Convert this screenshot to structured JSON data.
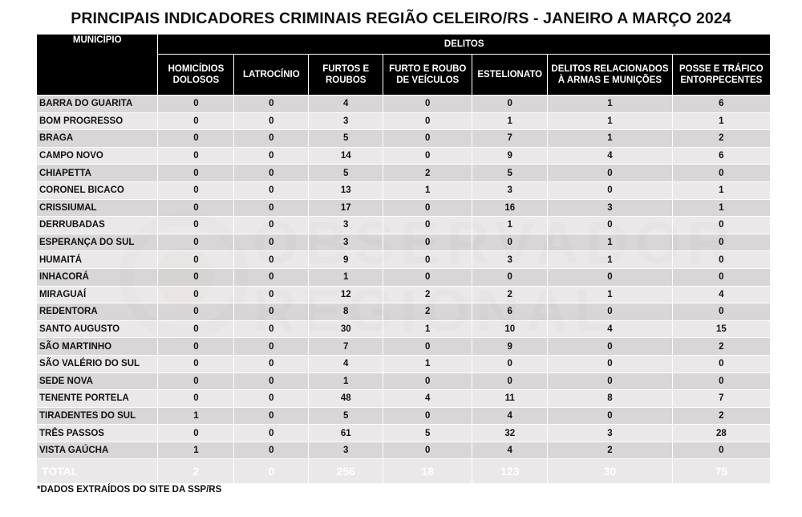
{
  "title": "PRINCIPAIS INDICADORES CRIMINAIS REGIÃO CELEIRO/RS - JANEIRO A MARÇO 2024",
  "watermark": {
    "line1": "OBSERVADOR",
    "line2": "REGIONAL"
  },
  "table": {
    "municipio_header": "MUNICÍPIO",
    "group_header": "DELITOS",
    "columns": [
      [
        "HOMICÍDIOS",
        "DOLOSOS"
      ],
      [
        "LATROCÍNIO"
      ],
      [
        "FURTOS E",
        "ROUBOS"
      ],
      [
        "FURTO E ROUBO",
        "DE VEÍCULOS"
      ],
      [
        "ESTELIONATO"
      ],
      [
        "DELITOS RELACIONADOS",
        "À ARMAS E MUNIÇÕES"
      ],
      [
        "POSSE E TRÁFICO",
        "ENTORPECENTES"
      ]
    ],
    "rows": [
      {
        "municipio": "BARRA DO GUARITA",
        "values": [
          "0",
          "0",
          "4",
          "0",
          "0",
          "1",
          "6"
        ]
      },
      {
        "municipio": "BOM PROGRESSO",
        "values": [
          "0",
          "0",
          "3",
          "0",
          "1",
          "1",
          "1"
        ]
      },
      {
        "municipio": "BRAGA",
        "values": [
          "0",
          "0",
          "5",
          "0",
          "7",
          "1",
          "2"
        ]
      },
      {
        "municipio": "CAMPO NOVO",
        "values": [
          "0",
          "0",
          "14",
          "0",
          "9",
          "4",
          "6"
        ]
      },
      {
        "municipio": "CHIAPETTA",
        "values": [
          "0",
          "0",
          "5",
          "2",
          "5",
          "0",
          "0"
        ]
      },
      {
        "municipio": "CORONEL BICACO",
        "values": [
          "0",
          "0",
          "13",
          "1",
          "3",
          "0",
          "1"
        ]
      },
      {
        "municipio": "CRISSIUMAL",
        "values": [
          "0",
          "0",
          "17",
          "0",
          "16",
          "3",
          "1"
        ]
      },
      {
        "municipio": "DERRUBADAS",
        "values": [
          "0",
          "0",
          "3",
          "0",
          "1",
          "0",
          "0"
        ]
      },
      {
        "municipio": "ESPERANÇA DO SUL",
        "values": [
          "0",
          "0",
          "3",
          "0",
          "0",
          "1",
          "0"
        ]
      },
      {
        "municipio": "HUMAITÁ",
        "values": [
          "0",
          "0",
          "9",
          "0",
          "3",
          "1",
          "0"
        ]
      },
      {
        "municipio": "INHACORÁ",
        "values": [
          "0",
          "0",
          "1",
          "0",
          "0",
          "0",
          "0"
        ]
      },
      {
        "municipio": "MIRAGUAÍ",
        "values": [
          "0",
          "0",
          "12",
          "2",
          "2",
          "1",
          "4"
        ]
      },
      {
        "municipio": "REDENTORA",
        "values": [
          "0",
          "0",
          "8",
          "2",
          "6",
          "0",
          "0"
        ]
      },
      {
        "municipio": "SANTO AUGUSTO",
        "values": [
          "0",
          "0",
          "30",
          "1",
          "10",
          "4",
          "15"
        ]
      },
      {
        "municipio": "SÃO MARTINHO",
        "values": [
          "0",
          "0",
          "7",
          "0",
          "9",
          "0",
          "2"
        ]
      },
      {
        "municipio": "SÃO VALÉRIO DO SUL",
        "values": [
          "0",
          "0",
          "4",
          "1",
          "0",
          "0",
          "0"
        ]
      },
      {
        "municipio": "SEDE NOVA",
        "values": [
          "0",
          "0",
          "1",
          "0",
          "0",
          "0",
          "0"
        ]
      },
      {
        "municipio": "TENENTE PORTELA",
        "values": [
          "0",
          "0",
          "48",
          "4",
          "11",
          "8",
          "7"
        ]
      },
      {
        "municipio": "TIRADENTES DO SUL",
        "values": [
          "1",
          "0",
          "5",
          "0",
          "4",
          "0",
          "2"
        ]
      },
      {
        "municipio": "TRÊS PASSOS",
        "values": [
          "0",
          "0",
          "61",
          "5",
          "32",
          "3",
          "28"
        ]
      },
      {
        "municipio": "VISTA GAÚCHA",
        "values": [
          "1",
          "0",
          "3",
          "0",
          "4",
          "2",
          "0"
        ]
      }
    ],
    "total": {
      "label": "TOTAL",
      "values": [
        "2",
        "0",
        "256",
        "18",
        "123",
        "30",
        "75"
      ]
    }
  },
  "footnote": "*DADOS EXTRAÍDOS DO SITE DA SSP/RS"
}
